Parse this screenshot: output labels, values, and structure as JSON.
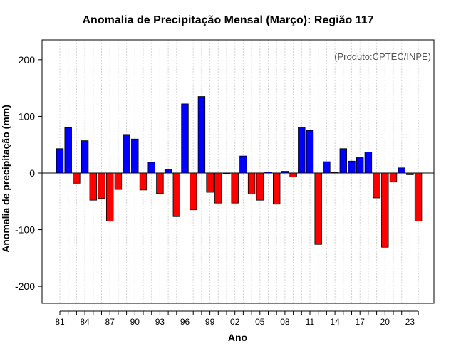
{
  "chart_data": {
    "type": "bar",
    "title": "Anomalia de Precipitação Mensal (Março): Região 117",
    "xlabel": "Ano",
    "ylabel": "Anomalia de precipitação (mm)",
    "annotation": "(Produto:CPTEC/INPE)",
    "ylim": [
      -230,
      235
    ],
    "y_ticks": [
      -200,
      -100,
      0,
      100,
      200
    ],
    "x_tick_labels": [
      "81",
      "84",
      "87",
      "90",
      "93",
      "96",
      "99",
      "02",
      "05",
      "08",
      "11",
      "14",
      "17",
      "20",
      "23"
    ],
    "categories": [
      "1981",
      "1982",
      "1983",
      "1984",
      "1985",
      "1986",
      "1987",
      "1988",
      "1989",
      "1990",
      "1991",
      "1992",
      "1993",
      "1994",
      "1995",
      "1996",
      "1997",
      "1998",
      "1999",
      "2000",
      "2001",
      "2002",
      "2003",
      "2004",
      "2005",
      "2006",
      "2007",
      "2008",
      "2009",
      "2010",
      "2011",
      "2012",
      "2013",
      "2014",
      "2015",
      "2016",
      "2017",
      "2018",
      "2019",
      "2020",
      "2021",
      "2022",
      "2023",
      "2024"
    ],
    "values": [
      43,
      80,
      -18,
      57,
      -48,
      -45,
      -85,
      -29,
      68,
      60,
      -30,
      19,
      -36,
      7,
      -77,
      122,
      -65,
      135,
      -34,
      -53,
      0,
      -53,
      30,
      -37,
      -48,
      2,
      -55,
      3,
      -7,
      81,
      75,
      -126,
      20,
      1,
      43,
      21,
      27,
      37,
      -44,
      -131,
      -16,
      9,
      -3,
      -85
    ],
    "colors": {
      "positive": "#0000ff",
      "negative": "#ff0000",
      "zero_line": "#000000",
      "grid": "#d3d3d3"
    }
  }
}
